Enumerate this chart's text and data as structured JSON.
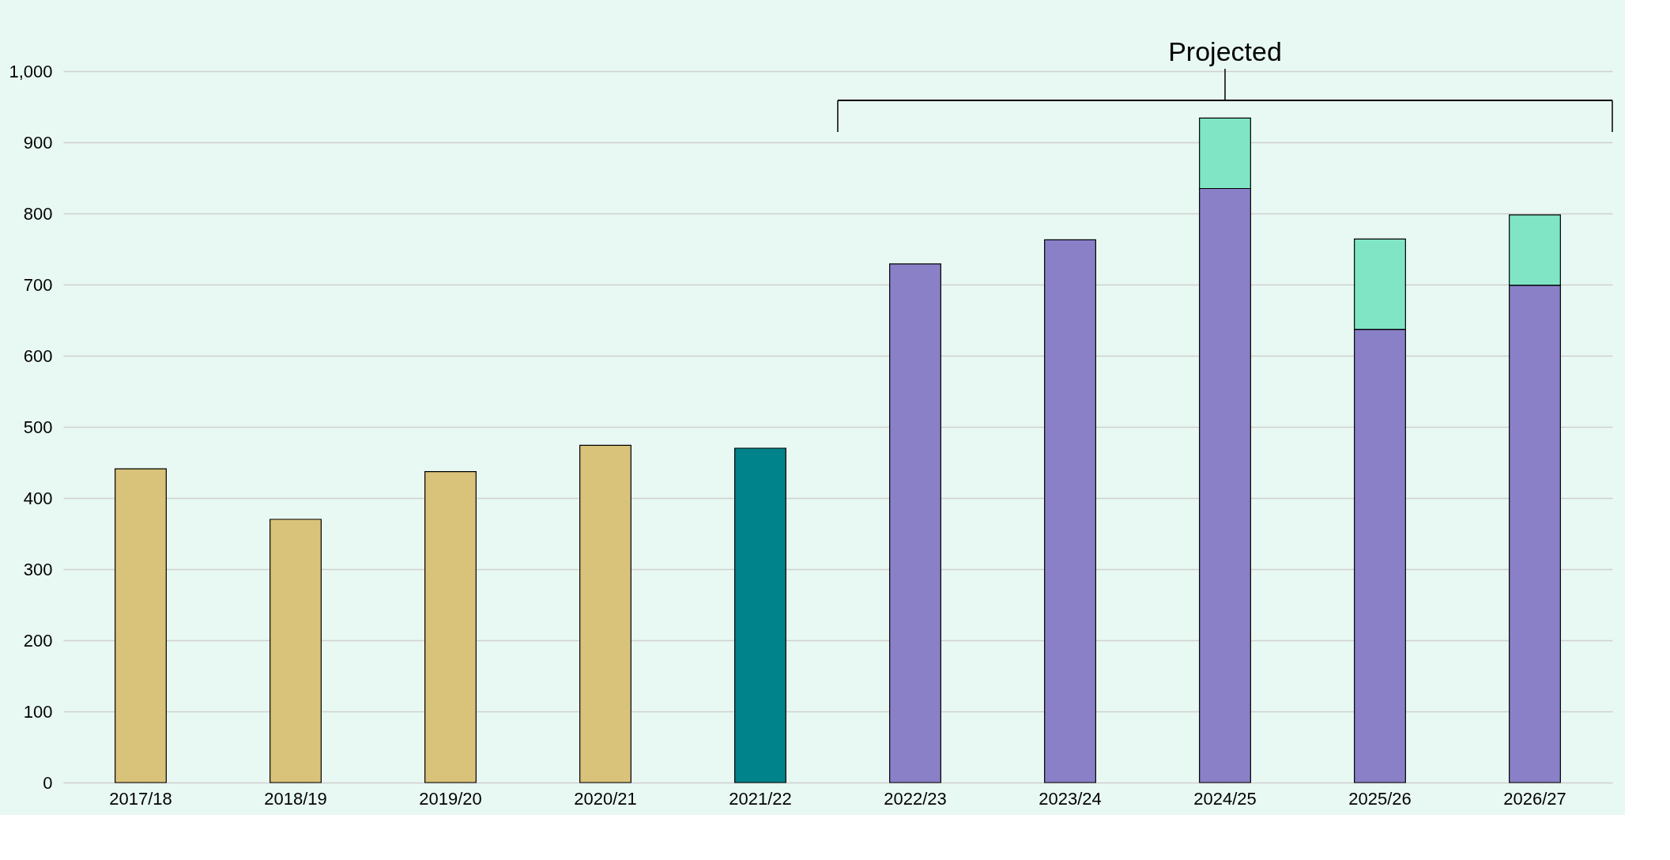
{
  "chart_data": {
    "type": "bar",
    "stacked": true,
    "categories": [
      "2017/18",
      "2018/19",
      "2019/20",
      "2020/21",
      "2021/22",
      "2022/23",
      "2023/24",
      "2024/25",
      "2025/26",
      "2026/27"
    ],
    "series": [
      {
        "color": "#d9c27a",
        "values": [
          441,
          370,
          437,
          474,
          null,
          null,
          null,
          null,
          null,
          null
        ]
      },
      {
        "color": "#00838a",
        "values": [
          null,
          null,
          null,
          null,
          470,
          null,
          null,
          null,
          null,
          null
        ]
      },
      {
        "color": "#8a80c8",
        "values": [
          null,
          null,
          null,
          null,
          null,
          729,
          763,
          835,
          637,
          699
        ]
      },
      {
        "color": "#7fe5c4",
        "values": [
          null,
          null,
          null,
          null,
          null,
          null,
          null,
          99,
          127,
          99
        ]
      }
    ],
    "annotations": [
      "Projected"
    ],
    "ylim": [
      0,
      1000
    ],
    "yticks": [
      0,
      100,
      200,
      300,
      400,
      500,
      600,
      700,
      800,
      900,
      {
        "value": 1000,
        "label": "1,000"
      }
    ],
    "grid": "y"
  }
}
